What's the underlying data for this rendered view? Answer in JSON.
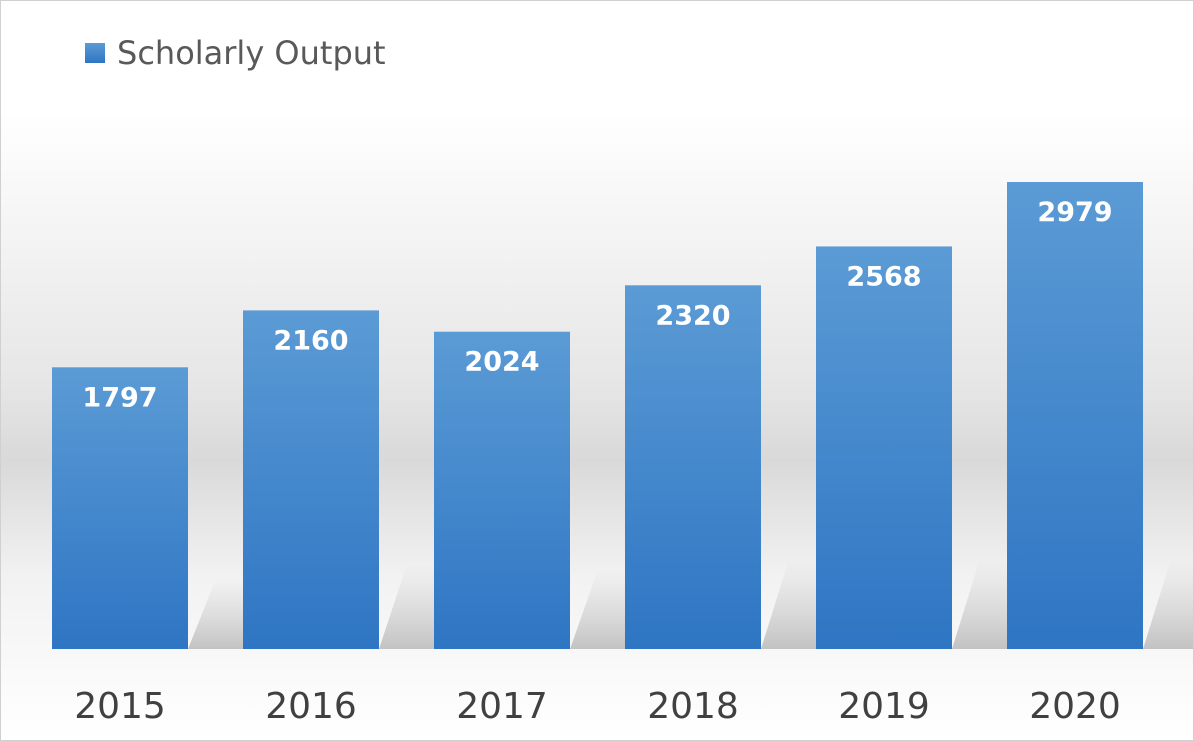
{
  "chart_data": {
    "type": "bar",
    "categories": [
      "2015",
      "2016",
      "2017",
      "2018",
      "2019",
      "2020"
    ],
    "series": [
      {
        "name": "Scholarly Output",
        "values": [
          1797,
          2160,
          2024,
          2320,
          2568,
          2979
        ]
      }
    ],
    "data_labels": [
      "1797",
      "2160",
      "2024",
      "2320",
      "2568",
      "2979"
    ],
    "legend": {
      "position": "top-left",
      "entries": [
        "Scholarly Output"
      ]
    },
    "ylim": [
      0,
      3000
    ],
    "grid": false,
    "colors": {
      "bar_top": "#5b9bd5",
      "bar_bottom": "#2e75c3",
      "label": "#ffffff",
      "tick": "#404040"
    }
  }
}
